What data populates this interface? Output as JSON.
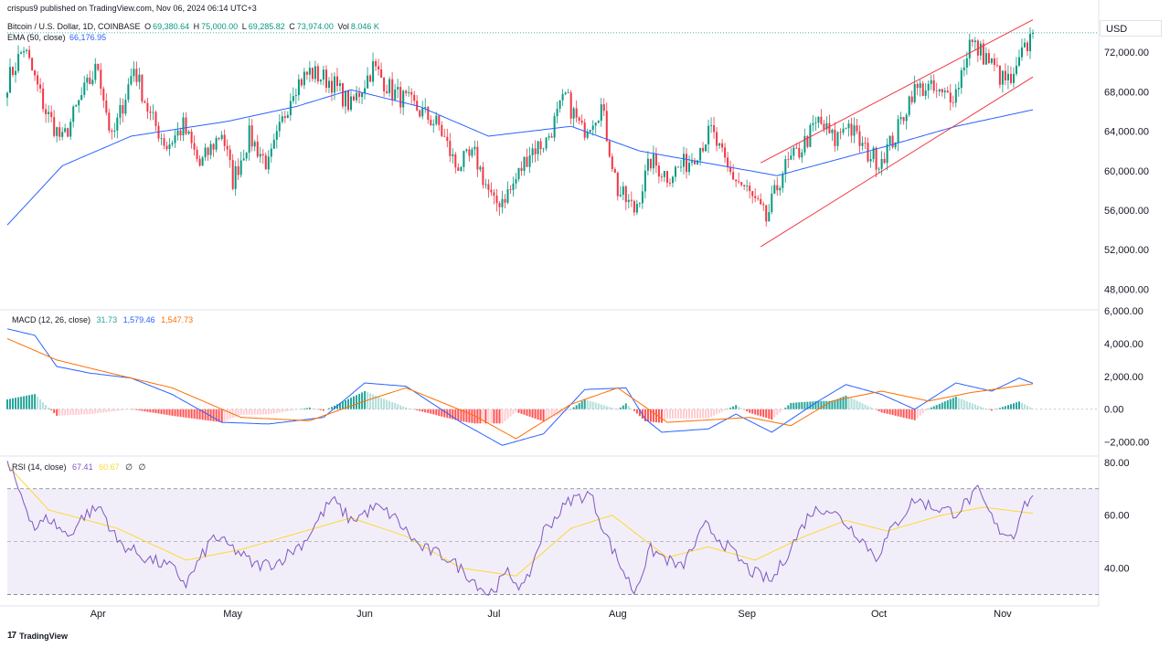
{
  "header": {
    "published": "crispus9 published on TradingView.com, Nov 06, 2024 06:14 UTC+3",
    "symbol": "Bitcoin / U.S. Dollar, 1D, COINBASE",
    "o_label": "O",
    "o_value": "69,380.64",
    "h_label": "H",
    "h_value": "75,000.00",
    "l_label": "L",
    "l_value": "69,285.82",
    "c_label": "C",
    "c_value": "73,974.00",
    "vol_label": "Vol",
    "vol_value": "8.046 K",
    "ema_label": "EMA (50, close)",
    "ema_value": "66,176.95"
  },
  "currency": "USD",
  "macd_header": {
    "label": "MACD (12, 26, close)",
    "hist": "31.73",
    "macd": "1,579.46",
    "signal": "1,547.73"
  },
  "rsi_header": {
    "label": "RSI (14, close)",
    "rsi": "67.41",
    "ma": "60.67",
    "extra1": "∅",
    "extra2": "∅"
  },
  "footer": {
    "brand": "TradingView"
  },
  "colors": {
    "up": "#089981",
    "down": "#f23645",
    "ema": "#2962ff",
    "channel": "#f23645",
    "macd": "#2962ff",
    "signal": "#ff6d00",
    "rsi": "#7e57c2",
    "rsi_ma": "#fdd835",
    "hist_up_strong": "#26a69a",
    "hist_up_weak": "#b2dfdb",
    "hist_down_strong": "#ff5252",
    "hist_down_weak": "#ffcdd2"
  },
  "chart_data": [
    {
      "type": "candlestick",
      "title": "Bitcoin / U.S. Dollar, 1D, COINBASE",
      "ylim": [
        46000,
        76000
      ],
      "y_ticks": [
        "48,000.00",
        "52,000.00",
        "56,000.00",
        "60,000.00",
        "64,000.00",
        "68,000.00",
        "72,000.00"
      ],
      "x_ticks": [
        "Apr",
        "May",
        "Jun",
        "Jul",
        "Aug",
        "Sep",
        "Oct",
        "Nov"
      ],
      "x_tick_index": [
        33,
        82,
        130,
        177,
        222,
        269,
        317,
        362
      ],
      "n_bars": 374,
      "last_close_line": 73974,
      "close_anchors": [
        [
          0,
          69000
        ],
        [
          6,
          72500
        ],
        [
          14,
          66000
        ],
        [
          20,
          63000
        ],
        [
          27,
          67500
        ],
        [
          33,
          70600
        ],
        [
          38,
          63000
        ],
        [
          46,
          70500
        ],
        [
          52,
          65500
        ],
        [
          58,
          62500
        ],
        [
          64,
          64500
        ],
        [
          70,
          60500
        ],
        [
          78,
          64000
        ],
        [
          82,
          59000
        ],
        [
          88,
          63500
        ],
        [
          95,
          60500
        ],
        [
          104,
          68500
        ],
        [
          110,
          70000
        ],
        [
          118,
          69000
        ],
        [
          125,
          66500
        ],
        [
          133,
          70500
        ],
        [
          140,
          68000
        ],
        [
          148,
          66500
        ],
        [
          157,
          64500
        ],
        [
          163,
          60500
        ],
        [
          170,
          61500
        ],
        [
          177,
          56500
        ],
        [
          183,
          58000
        ],
        [
          190,
          62000
        ],
        [
          196,
          63000
        ],
        [
          203,
          67500
        ],
        [
          209,
          64000
        ],
        [
          216,
          66500
        ],
        [
          222,
          58000
        ],
        [
          228,
          56000
        ],
        [
          234,
          61000
        ],
        [
          240,
          59500
        ],
        [
          248,
          61000
        ],
        [
          256,
          64000
        ],
        [
          262,
          60000
        ],
        [
          269,
          58000
        ],
        [
          276,
          55000
        ],
        [
          282,
          60000
        ],
        [
          288,
          62000
        ],
        [
          295,
          65000
        ],
        [
          301,
          63000
        ],
        [
          305,
          65000
        ],
        [
          312,
          62000
        ],
        [
          317,
          61000
        ],
        [
          323,
          63500
        ],
        [
          329,
          68000
        ],
        [
          334,
          68500
        ],
        [
          340,
          67500
        ],
        [
          345,
          68000
        ],
        [
          350,
          73000
        ],
        [
          356,
          71500
        ],
        [
          362,
          69200
        ],
        [
          366,
          69000
        ],
        [
          368,
          71000
        ],
        [
          373,
          73974
        ]
      ],
      "ema_anchors": [
        [
          0,
          54500
        ],
        [
          20,
          60500
        ],
        [
          45,
          63500
        ],
        [
          80,
          65000
        ],
        [
          105,
          66500
        ],
        [
          125,
          68200
        ],
        [
          150,
          66500
        ],
        [
          175,
          63500
        ],
        [
          205,
          64500
        ],
        [
          230,
          62000
        ],
        [
          260,
          60500
        ],
        [
          280,
          59500
        ],
        [
          300,
          61000
        ],
        [
          320,
          62500
        ],
        [
          345,
          64500
        ],
        [
          373,
          66177
        ]
      ],
      "ema_last": 66176.95,
      "channel_upper": [
        [
          274,
          60800
        ],
        [
          373,
          75300
        ]
      ],
      "channel_lower": [
        [
          274,
          52300
        ],
        [
          373,
          69500
        ]
      ]
    },
    {
      "type": "macd",
      "ylim": [
        -2800,
        6000
      ],
      "y_ticks": [
        "6,000.00",
        "4,000.00",
        "2,000.00",
        "0.00",
        "−2,000.00"
      ],
      "macd_anchors": [
        [
          0,
          4900
        ],
        [
          10,
          4500
        ],
        [
          18,
          2600
        ],
        [
          30,
          2200
        ],
        [
          45,
          1900
        ],
        [
          60,
          900
        ],
        [
          78,
          -800
        ],
        [
          95,
          -900
        ],
        [
          115,
          -500
        ],
        [
          130,
          1600
        ],
        [
          145,
          1400
        ],
        [
          165,
          -800
        ],
        [
          180,
          -2200
        ],
        [
          195,
          -1500
        ],
        [
          210,
          1200
        ],
        [
          225,
          1300
        ],
        [
          232,
          -600
        ],
        [
          238,
          -1400
        ],
        [
          255,
          -1200
        ],
        [
          265,
          -300
        ],
        [
          278,
          -1400
        ],
        [
          295,
          500
        ],
        [
          305,
          1500
        ],
        [
          318,
          900
        ],
        [
          330,
          0
        ],
        [
          345,
          1600
        ],
        [
          358,
          1100
        ],
        [
          368,
          1900
        ],
        [
          373,
          1579
        ]
      ],
      "signal_anchors": [
        [
          0,
          4300
        ],
        [
          18,
          3000
        ],
        [
          35,
          2300
        ],
        [
          60,
          1300
        ],
        [
          85,
          -500
        ],
        [
          110,
          -700
        ],
        [
          130,
          500
        ],
        [
          145,
          1300
        ],
        [
          170,
          -400
        ],
        [
          185,
          -1800
        ],
        [
          205,
          300
        ],
        [
          222,
          1300
        ],
        [
          240,
          -800
        ],
        [
          270,
          -500
        ],
        [
          285,
          -1000
        ],
        [
          300,
          500
        ],
        [
          318,
          1100
        ],
        [
          335,
          500
        ],
        [
          350,
          1000
        ],
        [
          373,
          1548
        ]
      ]
    },
    {
      "type": "rsi",
      "ylim": [
        26,
        82
      ],
      "y_ticks": [
        "80.00",
        "60.00",
        "40.00"
      ],
      "levels": [
        70,
        50,
        30
      ],
      "rsi_anchors": [
        [
          0,
          79
        ],
        [
          5,
          68
        ],
        [
          10,
          55
        ],
        [
          15,
          59
        ],
        [
          22,
          52
        ],
        [
          28,
          60
        ],
        [
          34,
          63
        ],
        [
          40,
          50
        ],
        [
          50,
          44
        ],
        [
          60,
          40
        ],
        [
          65,
          34
        ],
        [
          75,
          52
        ],
        [
          84,
          46
        ],
        [
          90,
          41
        ],
        [
          98,
          42
        ],
        [
          108,
          50
        ],
        [
          118,
          66
        ],
        [
          125,
          58
        ],
        [
          134,
          63
        ],
        [
          140,
          60
        ],
        [
          150,
          48
        ],
        [
          160,
          44
        ],
        [
          168,
          37
        ],
        [
          175,
          30
        ],
        [
          182,
          38
        ],
        [
          188,
          32
        ],
        [
          195,
          54
        ],
        [
          205,
          66
        ],
        [
          212,
          68
        ],
        [
          218,
          52
        ],
        [
          222,
          43
        ],
        [
          228,
          31
        ],
        [
          234,
          47
        ],
        [
          245,
          40
        ],
        [
          254,
          56
        ],
        [
          262,
          48
        ],
        [
          270,
          39
        ],
        [
          278,
          35
        ],
        [
          284,
          46
        ],
        [
          292,
          61
        ],
        [
          298,
          63
        ],
        [
          304,
          58
        ],
        [
          310,
          52
        ],
        [
          316,
          44
        ],
        [
          322,
          55
        ],
        [
          330,
          66
        ],
        [
          337,
          63
        ],
        [
          345,
          61
        ],
        [
          353,
          69
        ],
        [
          360,
          55
        ],
        [
          366,
          52
        ],
        [
          369,
          63
        ],
        [
          373,
          67.4
        ]
      ],
      "ma_anchors": [
        [
          0,
          79
        ],
        [
          15,
          62
        ],
        [
          40,
          55
        ],
        [
          65,
          43
        ],
        [
          85,
          47
        ],
        [
          105,
          53
        ],
        [
          125,
          59
        ],
        [
          145,
          52
        ],
        [
          165,
          40
        ],
        [
          185,
          37
        ],
        [
          205,
          55
        ],
        [
          220,
          60
        ],
        [
          240,
          44
        ],
        [
          255,
          48
        ],
        [
          272,
          43
        ],
        [
          290,
          52
        ],
        [
          305,
          58
        ],
        [
          320,
          54
        ],
        [
          340,
          60
        ],
        [
          355,
          63
        ],
        [
          373,
          60.67
        ]
      ]
    }
  ]
}
